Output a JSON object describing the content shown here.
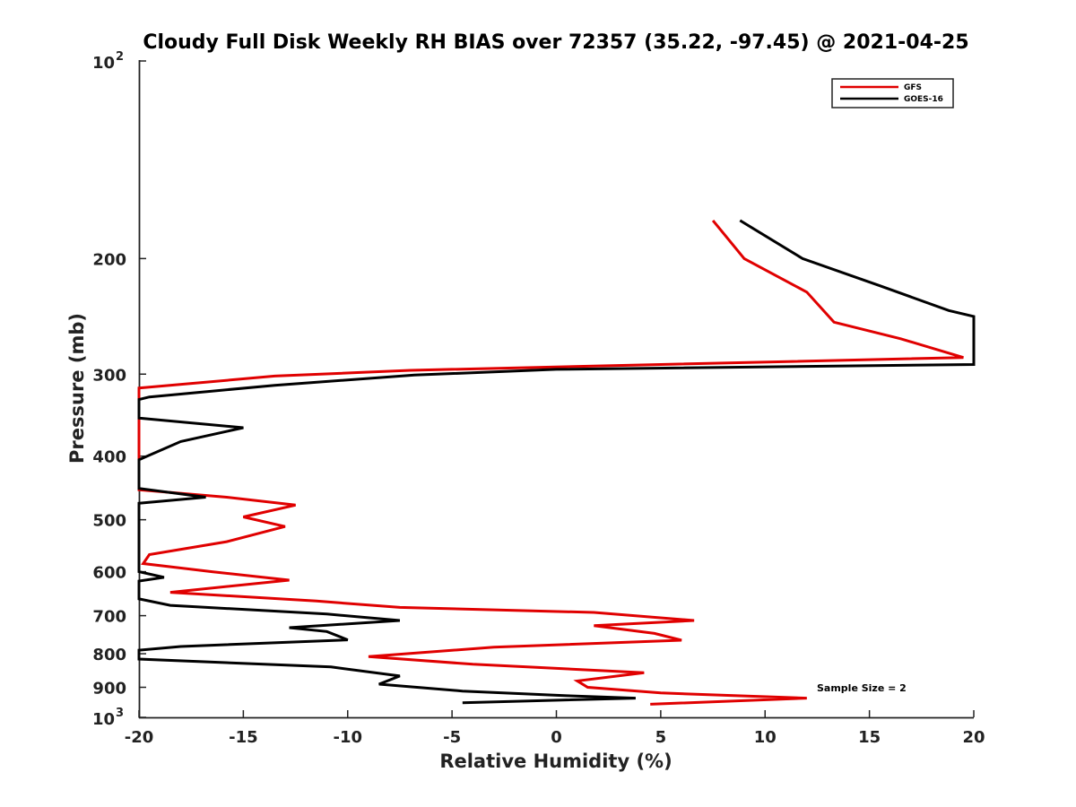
{
  "chart_data": {
    "type": "line",
    "title": "Cloudy Full Disk Weekly RH BIAS over 72357 (35.22, -97.45) @ 2021-04-25",
    "xlabel": "Relative Humidity (%)",
    "ylabel": "Pressure (mb)",
    "xlim": [
      -20,
      20
    ],
    "ylim": [
      100,
      1000
    ],
    "yscale": "log",
    "y_reversed": true,
    "grid": false,
    "legend_position": "top-right",
    "annotation": "Sample Size = 2",
    "x_ticks": [
      "-20",
      "-15",
      "-10",
      "-5",
      "0",
      "5",
      "10",
      "15",
      "20"
    ],
    "y_ticks": [
      {
        "value": 100,
        "label": "10",
        "exp": "2"
      },
      {
        "value": 200,
        "label": "200"
      },
      {
        "value": 300,
        "label": "300"
      },
      {
        "value": 400,
        "label": "400"
      },
      {
        "value": 500,
        "label": "500"
      },
      {
        "value": 600,
        "label": "600"
      },
      {
        "value": 700,
        "label": "700"
      },
      {
        "value": 800,
        "label": "800"
      },
      {
        "value": 900,
        "label": "900"
      },
      {
        "value": 1000,
        "label": "10",
        "exp": "3"
      }
    ],
    "series": [
      {
        "name": "GFS",
        "color": "#e00000",
        "points": [
          [
            7.5,
            175
          ],
          [
            9.0,
            200
          ],
          [
            12.0,
            225
          ],
          [
            13.3,
            250
          ],
          [
            16.5,
            265
          ],
          [
            19.5,
            283
          ],
          [
            5.0,
            290
          ],
          [
            -7.0,
            296
          ],
          [
            -13.5,
            302
          ],
          [
            -20.0,
            315
          ],
          [
            -20.0,
            450
          ],
          [
            -15.8,
            462
          ],
          [
            -12.5,
            475
          ],
          [
            -15.0,
            495
          ],
          [
            -13.0,
            512
          ],
          [
            -15.8,
            540
          ],
          [
            -19.5,
            565
          ],
          [
            -19.8,
            583
          ],
          [
            -16.5,
            600
          ],
          [
            -12.8,
            618
          ],
          [
            -18.5,
            645
          ],
          [
            -11.5,
            665
          ],
          [
            -7.5,
            680
          ],
          [
            1.8,
            692
          ],
          [
            6.6,
            712
          ],
          [
            1.8,
            725
          ],
          [
            4.7,
            745
          ],
          [
            6.0,
            763
          ],
          [
            -3.0,
            782
          ],
          [
            -9.0,
            808
          ],
          [
            -4.0,
            830
          ],
          [
            4.2,
            855
          ],
          [
            1.0,
            880
          ],
          [
            1.5,
            900
          ],
          [
            5.0,
            918
          ],
          [
            12.0,
            935
          ],
          [
            4.5,
            955
          ]
        ]
      },
      {
        "name": "GOES-16",
        "color": "#000000",
        "points": [
          [
            8.8,
            175
          ],
          [
            11.8,
            200
          ],
          [
            15.5,
            220
          ],
          [
            18.8,
            240
          ],
          [
            20.0,
            245
          ],
          [
            20.0,
            290
          ],
          [
            0.0,
            295
          ],
          [
            -6.8,
            301
          ],
          [
            -13.5,
            312
          ],
          [
            -19.5,
            325
          ],
          [
            -20.0,
            328
          ],
          [
            -20.0,
            350
          ],
          [
            -15.0,
            362
          ],
          [
            -18.0,
            380
          ],
          [
            -20.0,
            405
          ],
          [
            -20.0,
            448
          ],
          [
            -16.8,
            462
          ],
          [
            -20.0,
            472
          ],
          [
            -20.0,
            600
          ],
          [
            -18.8,
            612
          ],
          [
            -20.0,
            620
          ],
          [
            -20.0,
            660
          ],
          [
            -18.5,
            675
          ],
          [
            -11.0,
            696
          ],
          [
            -7.5,
            712
          ],
          [
            -12.8,
            730
          ],
          [
            -11.0,
            740
          ],
          [
            -10.0,
            762
          ],
          [
            -18.0,
            780
          ],
          [
            -20.0,
            790
          ],
          [
            -20.0,
            815
          ],
          [
            -10.8,
            838
          ],
          [
            -7.5,
            865
          ],
          [
            -8.5,
            890
          ],
          [
            -4.5,
            912
          ],
          [
            0.5,
            927
          ],
          [
            3.8,
            935
          ],
          [
            -4.5,
            950
          ]
        ]
      }
    ]
  }
}
